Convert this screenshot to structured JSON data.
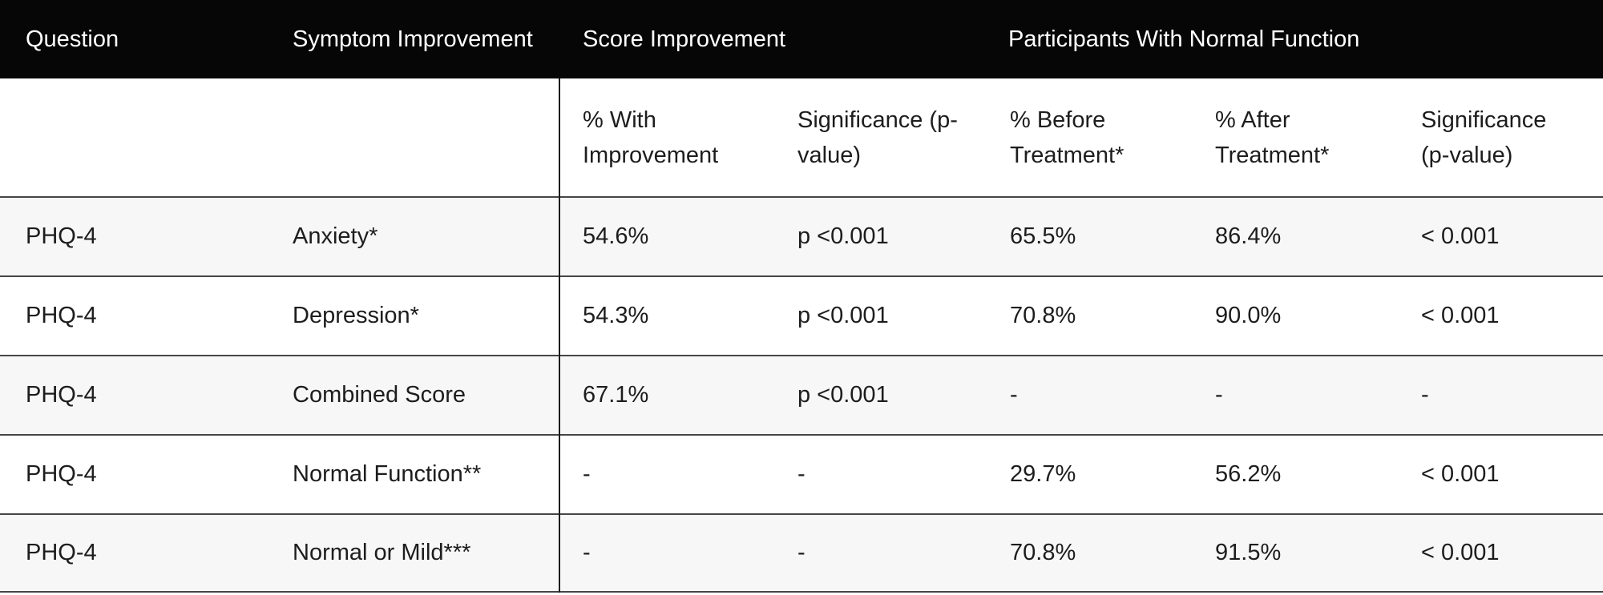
{
  "colors": {
    "header_bar_bg": "#060606",
    "header_bar_text": "#ffffff",
    "body_text": "#1d1d1d",
    "stripe_row_bg": "#f7f7f7",
    "row_border": "#454545",
    "column_divider": "#1c1c1c"
  },
  "chart_data": {
    "type": "table",
    "title": "",
    "header_groups": [
      {
        "label": "Question",
        "col_span": 1
      },
      {
        "label": "Symptom Improvement",
        "col_span": 1
      },
      {
        "label": "Score Improvement",
        "col_span": 2
      },
      {
        "label": "Participants With Normal Function",
        "col_span": 3
      }
    ],
    "subheaders": [
      {
        "full": "% With Improvement",
        "line1": "% With",
        "line2": "Improvement"
      },
      {
        "full": "Significance (p-value)",
        "line1": "Significance (p-",
        "line2": "value)"
      },
      {
        "full": "% Before Treatment*",
        "line1": "% Before",
        "line2": "Treatment*"
      },
      {
        "full": "% After Treatment*",
        "line1": "% After",
        "line2": "Treatment*"
      },
      {
        "full": "Significance (p-value)",
        "line1": "Significance",
        "line2": "(p-value)"
      }
    ],
    "columns": [
      "Question",
      "Symptom Improvement",
      "% With Improvement",
      "Significance (p-value)",
      "% Before Treatment*",
      "% After Treatment*",
      "Significance (p-value)"
    ],
    "rows": [
      [
        "PHQ-4",
        "Anxiety*",
        "54.6%",
        "p <0.001",
        "65.5%",
        "86.4%",
        "< 0.001"
      ],
      [
        "PHQ-4",
        "Depression*",
        "54.3%",
        "p <0.001",
        "70.8%",
        "90.0%",
        "< 0.001"
      ],
      [
        "PHQ-4",
        "Combined Score",
        "67.1%",
        "p <0.001",
        "-",
        "-",
        "-"
      ],
      [
        "PHQ-4",
        "Normal Function**",
        "-",
        "-",
        "29.7%",
        "56.2%",
        "< 0.001"
      ],
      [
        "PHQ-4",
        "Normal or Mild***",
        "-",
        "-",
        "70.8%",
        "91.5%",
        "< 0.001"
      ]
    ],
    "layout_hints": {
      "zebra_stripes": "rows 1,3,5 shaded",
      "vertical_divider_after_column": 2,
      "grid": "horizontal row borders only"
    }
  }
}
